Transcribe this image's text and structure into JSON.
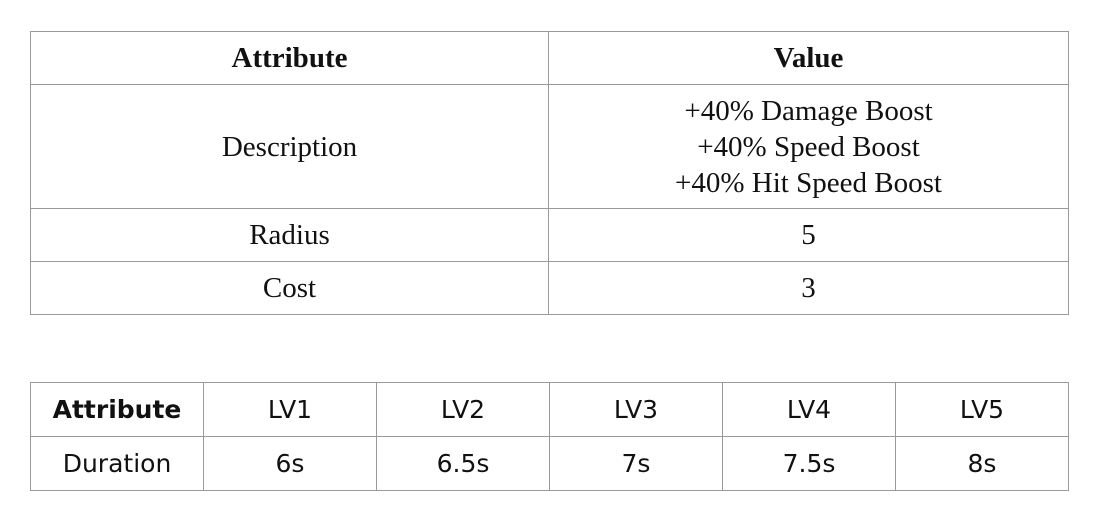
{
  "props_table": {
    "header": {
      "attribute": "Attribute",
      "value": "Value"
    },
    "description": {
      "label": "Description",
      "lines": [
        "+40% Damage Boost",
        "+40% Speed Boost",
        "+40% Hit Speed Boost"
      ]
    },
    "radius": {
      "label": "Radius",
      "value": "5"
    },
    "cost": {
      "label": "Cost",
      "value": "3"
    }
  },
  "level_table": {
    "header": {
      "attribute": "Attribute",
      "levels": [
        "LV1",
        "LV2",
        "LV3",
        "LV4",
        "LV5"
      ]
    },
    "duration": {
      "label": "Duration",
      "values": [
        "6s",
        "6.5s",
        "7s",
        "7.5s",
        "8s"
      ]
    }
  }
}
